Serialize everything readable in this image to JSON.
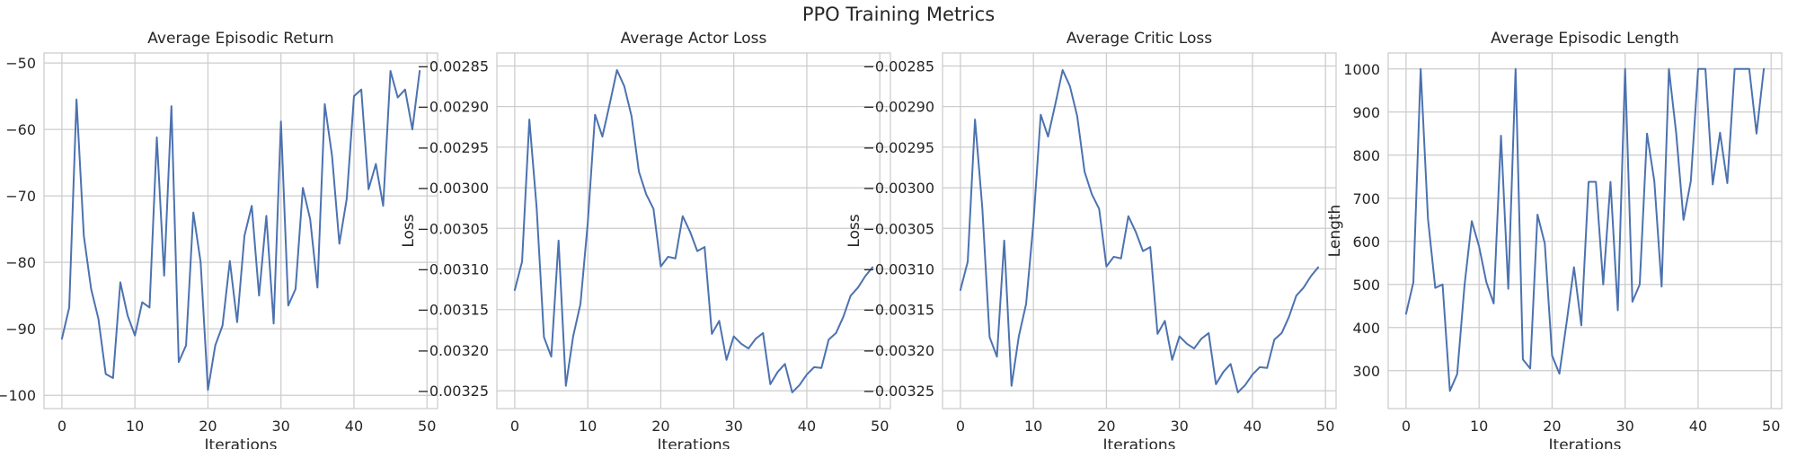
{
  "figure": {
    "suptitle": "PPO Training Metrics",
    "line_color": "#4c72b0"
  },
  "chart_data": [
    {
      "type": "line",
      "title": "Average Episodic Return",
      "xlabel": "Iterations",
      "ylabel": "",
      "xlim": [
        -2.45,
        51.45
      ],
      "ylim": [
        -102.0,
        -48.5
      ],
      "xticks": [
        0,
        10,
        20,
        30,
        40,
        50
      ],
      "xtick_labels": [
        "0",
        "10",
        "20",
        "30",
        "40",
        "50"
      ],
      "yticks": [
        -100,
        -90,
        -80,
        -70,
        -60,
        -50
      ],
      "ytick_labels": [
        "−100",
        "−90",
        "−80",
        "−70",
        "−60",
        "−50"
      ],
      "grid": true,
      "x": [
        0,
        1,
        2,
        3,
        4,
        5,
        6,
        7,
        8,
        9,
        10,
        11,
        12,
        13,
        14,
        15,
        16,
        17,
        18,
        19,
        20,
        21,
        22,
        23,
        24,
        25,
        26,
        27,
        28,
        29,
        30,
        31,
        32,
        33,
        34,
        35,
        36,
        37,
        38,
        39,
        40,
        41,
        42,
        43,
        44,
        45,
        46,
        47,
        48,
        49
      ],
      "series": [
        {
          "values": [
            -91.5,
            -86.8,
            -55.5,
            -76.0,
            -84.0,
            -88.5,
            -96.8,
            -97.4,
            -83.0,
            -88.0,
            -91.0,
            -86.0,
            -86.8,
            -61.2,
            -82.0,
            -56.5,
            -95.0,
            -92.5,
            -72.5,
            -80.0,
            -99.2,
            -92.5,
            -89.5,
            -79.8,
            -89.0,
            -76.0,
            -71.5,
            -85.0,
            -73.0,
            -89.2,
            -58.8,
            -86.5,
            -84.0,
            -68.8,
            -73.5,
            -83.8,
            -56.2,
            -64.0,
            -77.2,
            -70.5,
            -55.0,
            -54.0,
            -69.0,
            -65.2,
            -71.5,
            -51.2,
            -55.2,
            -54.0,
            -60.0,
            -51.2
          ]
        }
      ]
    },
    {
      "type": "line",
      "title": "Average Actor Loss",
      "xlabel": "Iterations",
      "ylabel": "Loss",
      "xlim": [
        -2.45,
        51.45
      ],
      "ylim": [
        -0.003272,
        -0.002834
      ],
      "xticks": [
        0,
        10,
        20,
        30,
        40,
        50
      ],
      "xtick_labels": [
        "0",
        "10",
        "20",
        "30",
        "40",
        "50"
      ],
      "yticks": [
        -0.00325,
        -0.0032,
        -0.00315,
        -0.0031,
        -0.00305,
        -0.003,
        -0.00295,
        -0.0029,
        -0.00285
      ],
      "ytick_labels": [
        "−0.00325",
        "−0.00320",
        "−0.00315",
        "−0.00310",
        "−0.00305",
        "−0.00300",
        "−0.00295",
        "−0.00290",
        "−0.00285"
      ],
      "grid": true,
      "x": [
        0,
        1,
        2,
        3,
        4,
        5,
        6,
        7,
        8,
        9,
        10,
        11,
        12,
        13,
        14,
        15,
        16,
        17,
        18,
        19,
        20,
        21,
        22,
        23,
        24,
        25,
        26,
        27,
        28,
        29,
        30,
        31,
        32,
        33,
        34,
        35,
        36,
        37,
        38,
        39,
        40,
        41,
        42,
        43,
        44,
        45,
        46,
        47,
        48,
        49
      ],
      "series": [
        {
          "values": [
            -0.003126,
            -0.003091,
            -0.002916,
            -0.003025,
            -0.003184,
            -0.003208,
            -0.003065,
            -0.003244,
            -0.003183,
            -0.003143,
            -0.003043,
            -0.00291,
            -0.002937,
            -0.002897,
            -0.002855,
            -0.002875,
            -0.002912,
            -0.00298,
            -0.003008,
            -0.003026,
            -0.003097,
            -0.003085,
            -0.003087,
            -0.003035,
            -0.003054,
            -0.003078,
            -0.003073,
            -0.00318,
            -0.003164,
            -0.003212,
            -0.003183,
            -0.003192,
            -0.003198,
            -0.003186,
            -0.003179,
            -0.003242,
            -0.003227,
            -0.003217,
            -0.003252,
            -0.003243,
            -0.00323,
            -0.003221,
            -0.003222,
            -0.003187,
            -0.003179,
            -0.003159,
            -0.003133,
            -0.003123,
            -0.003109,
            -0.003098
          ]
        }
      ]
    },
    {
      "type": "line",
      "title": "Average Critic Loss",
      "xlabel": "Iterations",
      "ylabel": "Loss",
      "xlim": [
        -2.45,
        51.45
      ],
      "ylim": [
        -0.003272,
        -0.002834
      ],
      "xticks": [
        0,
        10,
        20,
        30,
        40,
        50
      ],
      "xtick_labels": [
        "0",
        "10",
        "20",
        "30",
        "40",
        "50"
      ],
      "yticks": [
        -0.00325,
        -0.0032,
        -0.00315,
        -0.0031,
        -0.00305,
        -0.003,
        -0.00295,
        -0.0029,
        -0.00285
      ],
      "ytick_labels": [
        "−0.00325",
        "−0.00320",
        "−0.00315",
        "−0.00310",
        "−0.00305",
        "−0.00300",
        "−0.00295",
        "−0.00290",
        "−0.00285"
      ],
      "grid": true,
      "x": [
        0,
        1,
        2,
        3,
        4,
        5,
        6,
        7,
        8,
        9,
        10,
        11,
        12,
        13,
        14,
        15,
        16,
        17,
        18,
        19,
        20,
        21,
        22,
        23,
        24,
        25,
        26,
        27,
        28,
        29,
        30,
        31,
        32,
        33,
        34,
        35,
        36,
        37,
        38,
        39,
        40,
        41,
        42,
        43,
        44,
        45,
        46,
        47,
        48,
        49
      ],
      "series": [
        {
          "values": [
            -0.003126,
            -0.003091,
            -0.002916,
            -0.003025,
            -0.003184,
            -0.003208,
            -0.003065,
            -0.003244,
            -0.003183,
            -0.003143,
            -0.003043,
            -0.00291,
            -0.002937,
            -0.002897,
            -0.002855,
            -0.002875,
            -0.002912,
            -0.00298,
            -0.003008,
            -0.003026,
            -0.003097,
            -0.003085,
            -0.003087,
            -0.003035,
            -0.003054,
            -0.003078,
            -0.003073,
            -0.00318,
            -0.003164,
            -0.003212,
            -0.003183,
            -0.003192,
            -0.003198,
            -0.003186,
            -0.003179,
            -0.003242,
            -0.003227,
            -0.003217,
            -0.003252,
            -0.003243,
            -0.00323,
            -0.003221,
            -0.003222,
            -0.003187,
            -0.003179,
            -0.003159,
            -0.003133,
            -0.003123,
            -0.003109,
            -0.003098
          ]
        }
      ]
    },
    {
      "type": "line",
      "title": "Average Episodic Length",
      "xlabel": "Iterations",
      "ylabel": "Length",
      "xlim": [
        -2.45,
        51.45
      ],
      "ylim": [
        212,
        1037
      ],
      "xticks": [
        0,
        10,
        20,
        30,
        40,
        50
      ],
      "xtick_labels": [
        "0",
        "10",
        "20",
        "30",
        "40",
        "50"
      ],
      "yticks": [
        300,
        400,
        500,
        600,
        700,
        800,
        900,
        1000
      ],
      "ytick_labels": [
        "300",
        "400",
        "500",
        "600",
        "700",
        "800",
        "900",
        "1000"
      ],
      "grid": true,
      "x": [
        0,
        1,
        2,
        3,
        4,
        5,
        6,
        7,
        8,
        9,
        10,
        11,
        12,
        13,
        14,
        15,
        16,
        17,
        18,
        19,
        20,
        21,
        22,
        23,
        24,
        25,
        26,
        27,
        28,
        29,
        30,
        31,
        32,
        33,
        34,
        35,
        36,
        37,
        38,
        39,
        40,
        41,
        42,
        43,
        44,
        45,
        46,
        47,
        48,
        49
      ],
      "series": [
        {
          "values": [
            432,
            505,
            1000,
            652,
            492,
            500,
            253,
            292,
            497,
            647,
            588,
            505,
            456,
            845,
            490,
            1000,
            326,
            305,
            662,
            595,
            335,
            293,
            413,
            540,
            405,
            738,
            738,
            500,
            738,
            440,
            1000,
            460,
            500,
            850,
            740,
            495,
            1000,
            850,
            650,
            740,
            1000,
            1000,
            732,
            852,
            735,
            1000,
            1000,
            1000,
            850,
            1000
          ]
        }
      ]
    }
  ]
}
